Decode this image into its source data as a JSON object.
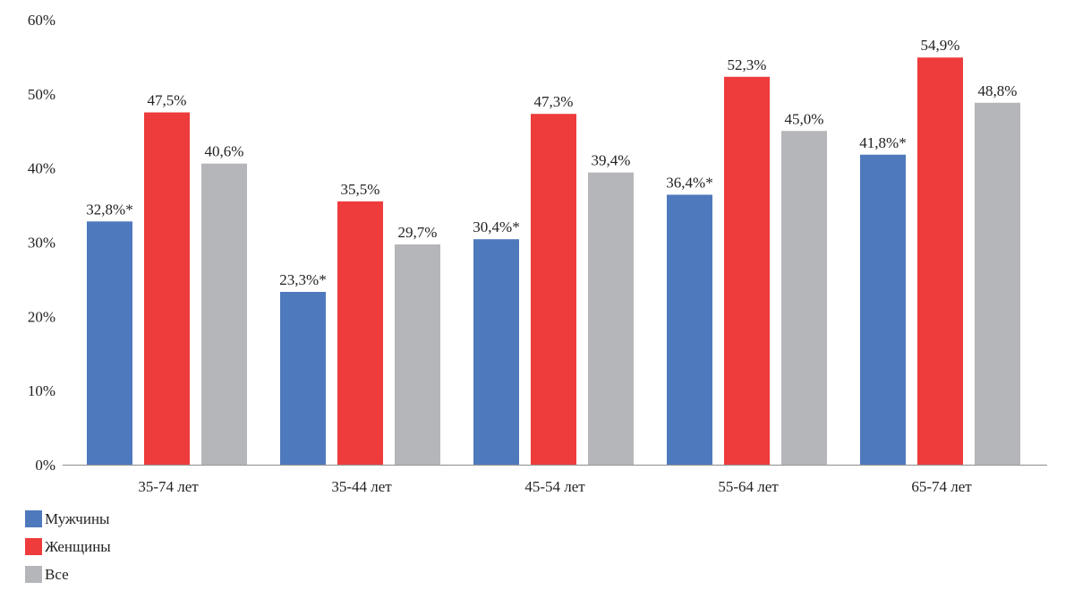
{
  "chart_data": {
    "type": "bar",
    "title": "",
    "xlabel": "",
    "ylabel": "",
    "ylim": [
      0,
      60
    ],
    "yticks": [
      "0%",
      "10%",
      "20%",
      "30%",
      "40%",
      "50%",
      "60%"
    ],
    "ytick_values": [
      0,
      10,
      20,
      30,
      40,
      50,
      60
    ],
    "grid": false,
    "legend_position": "bottom-left",
    "categories": [
      "35-74 лет",
      "35-44 лет",
      "45-54 лет",
      "55-64 лет",
      "65-74 лет"
    ],
    "series": [
      {
        "name": "Мужчины",
        "color": "#4f79bd",
        "values": [
          32.8,
          23.3,
          30.4,
          36.4,
          41.8
        ],
        "labels": [
          "32,8%*",
          "23,3%*",
          "30,4%*",
          "36,4%*",
          "41,8%*"
        ]
      },
      {
        "name": "Женщины",
        "color": "#ee3b3b",
        "values": [
          47.5,
          35.5,
          47.3,
          52.3,
          54.9
        ],
        "labels": [
          "47,5%",
          "35,5%",
          "47,3%",
          "52,3%",
          "54,9%"
        ]
      },
      {
        "name": "Все",
        "color": "#b5b6b9",
        "values": [
          40.6,
          29.7,
          39.4,
          45.0,
          48.8
        ],
        "labels": [
          "40,6%",
          "29,7%",
          "39,4%",
          "45,0%",
          "48,8%"
        ]
      }
    ]
  }
}
